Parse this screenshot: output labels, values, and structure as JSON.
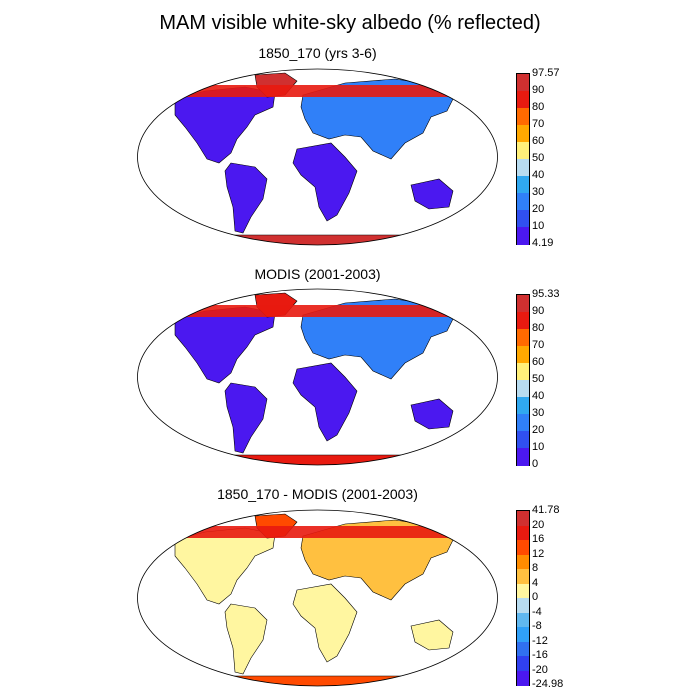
{
  "title": "MAM visible white-sky albedo (% reflected)",
  "panels": [
    {
      "title": "1850_170 (yrs 3-6)",
      "colorbar": {
        "labels": [
          "97.57",
          "90",
          "80",
          "70",
          "60",
          "50",
          "40",
          "30",
          "20",
          "10",
          "4.19"
        ],
        "colors": [
          "#d03030",
          "#e81a10",
          "#ff6a00",
          "#ffa800",
          "#fff07a",
          "#b8dcf0",
          "#30a8f0",
          "#3080f8",
          "#3050f0",
          "#4b18f0"
        ]
      },
      "fields": {
        "ocean": "#ffffff",
        "land_low": "#4b18f0",
        "land_mid": "#3080f8",
        "land_high": "#e81a10",
        "snow": "#d03030"
      }
    },
    {
      "title": "MODIS (2001-2003)",
      "colorbar": {
        "labels": [
          "95.33",
          "90",
          "80",
          "70",
          "60",
          "50",
          "40",
          "30",
          "20",
          "10",
          "0"
        ],
        "colors": [
          "#d03030",
          "#e81a10",
          "#ff6a00",
          "#ffa800",
          "#fff07a",
          "#b8dcf0",
          "#30a8f0",
          "#3080f8",
          "#3050f0",
          "#4b18f0"
        ]
      },
      "fields": {
        "ocean": "#ffffff",
        "land_low": "#4b18f0",
        "land_mid": "#3080f8",
        "land_high": "#e81a10",
        "snow": "#e81a10"
      }
    },
    {
      "title": "1850_170 - MODIS (2001-2003)",
      "colorbar": {
        "labels": [
          "41.78",
          "20",
          "16",
          "12",
          "8",
          "4",
          "0",
          "-4",
          "-8",
          "-12",
          "-16",
          "-20",
          "-24.98"
        ],
        "colors": [
          "#d03030",
          "#e81a10",
          "#ff4a00",
          "#ff8c00",
          "#ffc040",
          "#fff6a0",
          "#b8dcf0",
          "#60b8f0",
          "#30a0f8",
          "#3070f0",
          "#3040f0",
          "#4b18f0"
        ]
      },
      "fields": {
        "ocean": "#ffffff",
        "land_low": "#fff6a0",
        "land_mid": "#ffc040",
        "land_high": "#e81a10",
        "snow": "#ff4a00"
      }
    }
  ]
}
